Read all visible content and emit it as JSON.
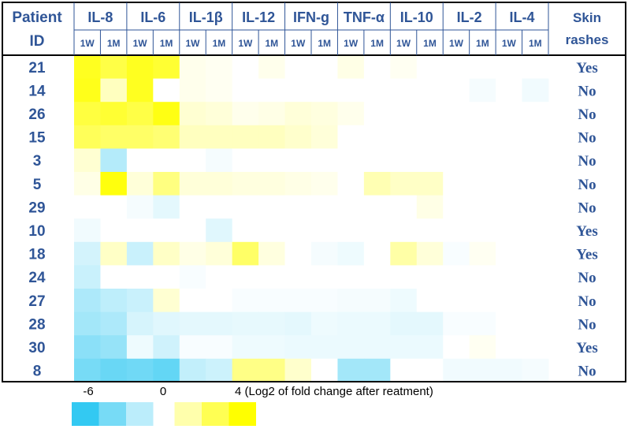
{
  "chart_data": {
    "type": "heatmap",
    "row_header": [
      "Patient",
      "ID"
    ],
    "rash_header": [
      "Skin",
      "rashes"
    ],
    "columns": [
      {
        "name": "IL-8",
        "timepoints": [
          "1W",
          "1M"
        ]
      },
      {
        "name": "IL-6",
        "timepoints": [
          "1W",
          "1M"
        ]
      },
      {
        "name": "IL-1β",
        "timepoints": [
          "1W",
          "1M"
        ]
      },
      {
        "name": "IL-12",
        "timepoints": [
          "1W",
          "1M"
        ]
      },
      {
        "name": "IFN-g",
        "timepoints": [
          "1W",
          "1M"
        ]
      },
      {
        "name": "TNF-α",
        "timepoints": [
          "1W",
          "1M"
        ]
      },
      {
        "name": "IL-10",
        "timepoints": [
          "1W",
          "1M"
        ]
      },
      {
        "name": "IL-2",
        "timepoints": [
          "1W",
          "1M"
        ]
      },
      {
        "name": "IL-4",
        "timepoints": [
          "1W",
          "1M"
        ]
      }
    ],
    "patients": [
      "21",
      "14",
      "26",
      "15",
      "3",
      "5",
      "29",
      "10",
      "18",
      "24",
      "27",
      "28",
      "30",
      "8"
    ],
    "skin_rashes": [
      "Yes",
      "No",
      "No",
      "No",
      "No",
      "No",
      "No",
      "Yes",
      "Yes",
      "No",
      "No",
      "No",
      "Yes",
      "No"
    ],
    "values": [
      [
        3.5,
        2.9,
        3.5,
        3.2,
        0.3,
        0.2,
        0.0,
        0.3,
        0.0,
        0.0,
        0.4,
        0.0,
        0.2,
        0.0,
        0.0,
        0.0,
        0.0,
        0.0
      ],
      [
        3.6,
        1.0,
        3.5,
        0.0,
        0.3,
        0.2,
        0.0,
        0.0,
        0.0,
        0.0,
        0.0,
        0.0,
        0.0,
        0.0,
        0.0,
        -0.3,
        0.0,
        -0.4
      ],
      [
        3.0,
        3.2,
        2.9,
        3.7,
        0.7,
        0.6,
        0.3,
        0.4,
        0.6,
        0.5,
        0.3,
        0.0,
        0.0,
        0.0,
        0.0,
        0.0,
        0.0,
        0.0
      ],
      [
        2.6,
        2.4,
        2.4,
        2.2,
        1.0,
        1.0,
        1.0,
        1.0,
        0.8,
        0.6,
        0.0,
        0.0,
        0.0,
        0.0,
        0.0,
        0.0,
        0.0,
        0.0
      ],
      [
        0.7,
        -2.2,
        0.0,
        0.0,
        0.0,
        -0.3,
        0.0,
        0.0,
        0.0,
        0.0,
        0.0,
        0.0,
        0.0,
        0.0,
        0.0,
        0.0,
        0.0,
        0.0
      ],
      [
        0.4,
        3.8,
        0.6,
        2.0,
        0.6,
        0.6,
        0.5,
        0.5,
        0.4,
        0.3,
        0.0,
        1.2,
        0.9,
        0.9,
        0.0,
        0.0,
        0.0,
        0.0
      ],
      [
        0.0,
        0.0,
        -0.3,
        -0.8,
        0.0,
        0.0,
        0.0,
        0.0,
        0.0,
        0.0,
        0.0,
        0.0,
        0.0,
        0.4,
        0.0,
        0.0,
        0.0,
        0.0
      ],
      [
        -0.4,
        0.0,
        0.0,
        0.0,
        0.0,
        -0.9,
        0.0,
        0.0,
        0.0,
        0.0,
        0.0,
        0.0,
        0.0,
        0.0,
        0.0,
        0.0,
        0.0,
        0.0
      ],
      [
        -1.3,
        0.9,
        -1.6,
        0.9,
        0.4,
        0.6,
        2.4,
        0.5,
        0.0,
        -0.3,
        -0.5,
        0.0,
        1.4,
        0.6,
        -0.2,
        0.2,
        0.0,
        0.0
      ],
      [
        -1.6,
        0.0,
        0.0,
        0.0,
        -0.2,
        0.0,
        0.0,
        0.0,
        0.0,
        0.0,
        0.0,
        0.0,
        0.0,
        0.0,
        0.0,
        0.0,
        0.0,
        0.0
      ],
      [
        -2.4,
        -1.9,
        -1.6,
        0.7,
        0.0,
        0.0,
        -0.2,
        -0.2,
        -0.2,
        -0.2,
        -0.3,
        -0.3,
        -0.5,
        0.0,
        0.0,
        0.0,
        0.0,
        0.0
      ],
      [
        -2.7,
        -2.4,
        -1.2,
        -0.9,
        -0.8,
        -0.8,
        -0.7,
        -0.7,
        -0.8,
        -0.5,
        -0.6,
        -0.6,
        -0.8,
        -0.8,
        -0.2,
        -0.2,
        0.0,
        0.0
      ],
      [
        -3.4,
        -3.1,
        -0.5,
        -1.4,
        -0.2,
        -0.2,
        -0.5,
        -0.5,
        -0.6,
        -0.6,
        -0.6,
        -0.6,
        -0.6,
        -0.6,
        0.0,
        0.2,
        0.0,
        0.0
      ],
      [
        -4.0,
        -4.4,
        -4.2,
        -4.6,
        -1.8,
        -1.5,
        1.9,
        1.9,
        0.8,
        0.0,
        -2.7,
        -2.7,
        0.0,
        0.0,
        -0.4,
        -0.4,
        -0.4,
        -0.3
      ]
    ],
    "scale": {
      "min": -6,
      "max": 4,
      "tick_labels": [
        "-6",
        "0"
      ],
      "max_label": "4 (Log2 of fold change after reatment)",
      "negative_color": "#33c9f2",
      "positive_color": "#ffff00",
      "neutral_color": "#ffffff",
      "swatches": [
        -6,
        -4,
        -2,
        1.3,
        2.7,
        4
      ]
    }
  },
  "colors": {
    "text": "#2f5597",
    "border": "#000000",
    "grid": "#2f5597"
  }
}
